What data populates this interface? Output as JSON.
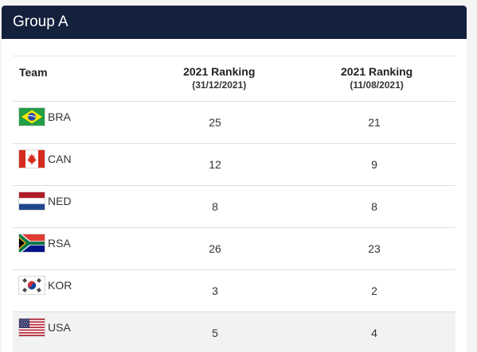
{
  "group": {
    "title": "Group A"
  },
  "table": {
    "headers": {
      "team": "Team",
      "col1": {
        "label": "2021 Ranking",
        "date": "(31/12/2021)"
      },
      "col2": {
        "label": "2021 Ranking",
        "date": "(11/08/2021)"
      }
    },
    "rows": [
      {
        "team": "BRA",
        "flag": "brazil-flag-icon",
        "rank1": "25",
        "rank2": "21"
      },
      {
        "team": "CAN",
        "flag": "canada-flag-icon",
        "rank1": "12",
        "rank2": "9"
      },
      {
        "team": "NED",
        "flag": "netherlands-flag-icon",
        "rank1": "8",
        "rank2": "8"
      },
      {
        "team": "RSA",
        "flag": "south-africa-flag-icon",
        "rank1": "26",
        "rank2": "23"
      },
      {
        "team": "KOR",
        "flag": "south-korea-flag-icon",
        "rank1": "3",
        "rank2": "2"
      },
      {
        "team": "USA",
        "flag": "usa-flag-icon",
        "rank1": "5",
        "rank2": "4"
      }
    ]
  },
  "colors": {
    "header_bg": "#14213d",
    "row_alt_bg": "#f2f2f2"
  }
}
